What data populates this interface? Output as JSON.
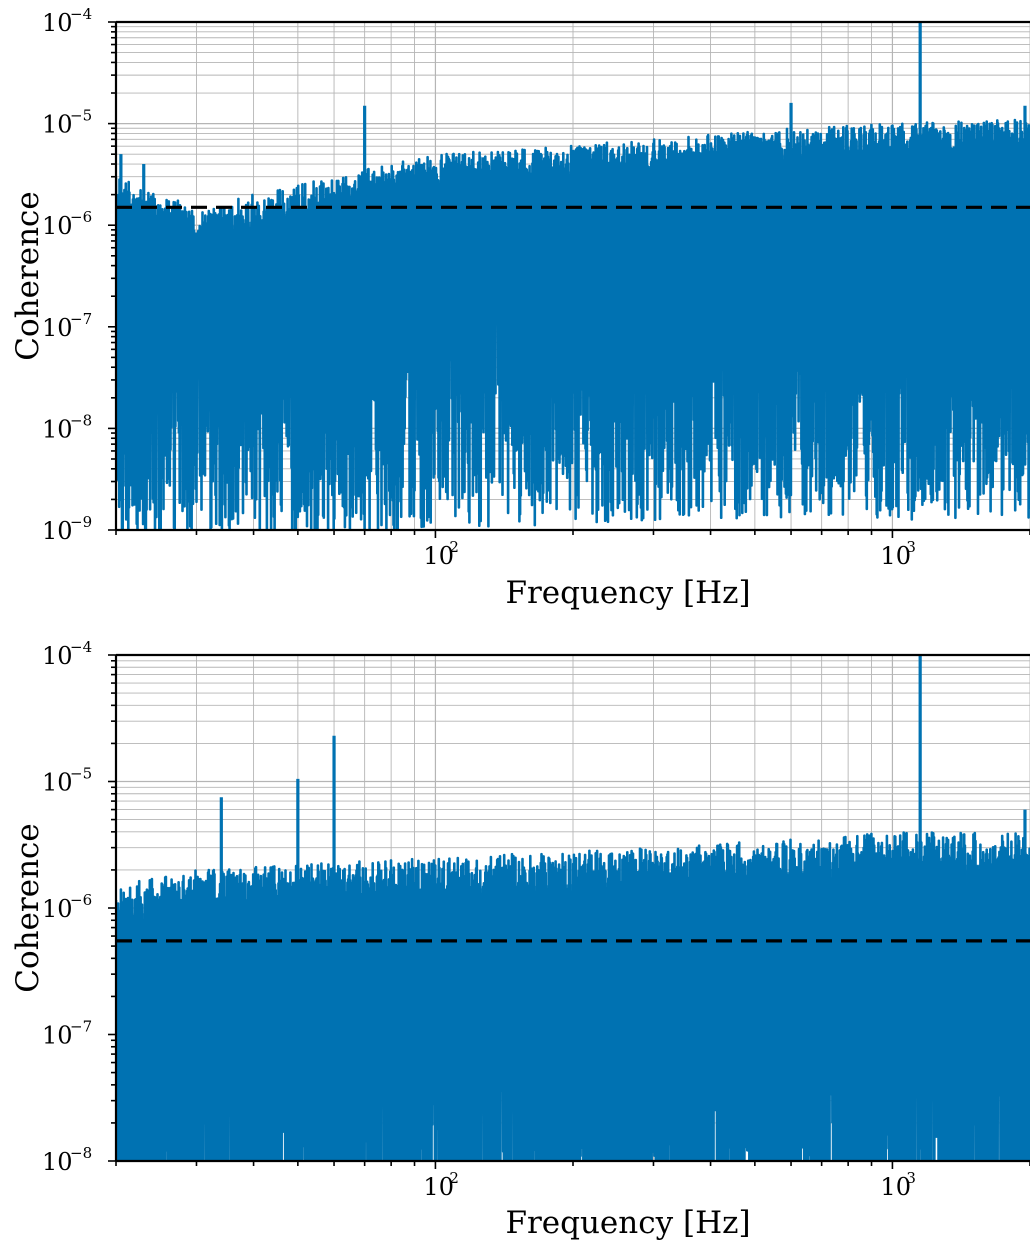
{
  "figure": {
    "panels_count": 2
  },
  "chart_data": [
    {
      "type": "line",
      "log_x": true,
      "log_y": true,
      "xlabel": "Frequency [Hz]",
      "ylabel": "Coherence",
      "xlim": [
        20,
        2000
      ],
      "ylim": [
        1e-09,
        0.0001
      ],
      "x_ticks": [
        {
          "base": "10",
          "exp": "2",
          "value": 100
        },
        {
          "base": "10",
          "exp": "3",
          "value": 1000
        }
      ],
      "y_ticks": [
        {
          "base": "10",
          "exp": "−9",
          "value": 1e-09
        },
        {
          "base": "10",
          "exp": "−8",
          "value": 1e-08
        },
        {
          "base": "10",
          "exp": "−7",
          "value": 1e-07
        },
        {
          "base": "10",
          "exp": "−6",
          "value": 1e-06
        },
        {
          "base": "10",
          "exp": "−5",
          "value": 1e-05
        },
        {
          "base": "10",
          "exp": "−4",
          "value": 0.0001
        }
      ],
      "grid": true,
      "colors": {
        "series": "#0072b2",
        "threshold": "#000000",
        "grid": "#b5b5b5"
      },
      "threshold": 1.5e-06,
      "series": [
        {
          "style": "noisy-coherence",
          "envelope": {
            "x": [
              20,
              30,
              50,
              100,
              300,
              600,
              1000,
              2000
            ],
            "y_upper": [
              3e-06,
              1.5e-06,
              2.5e-06,
              5e-06,
              7e-06,
              9e-06,
              1e-05,
              1.1e-05
            ],
            "y_median": [
              3e-07,
              2.5e-07,
              3e-07,
              4e-07,
              5e-07,
              5e-07,
              5e-07,
              5e-07
            ]
          },
          "spikes": [
            {
              "x": 20.5,
              "y": 5e-06
            },
            {
              "x": 23,
              "y": 4e-06
            },
            {
              "x": 46,
              "y": 1.6e-06
            },
            {
              "x": 70,
              "y": 1.5e-05
            },
            {
              "x": 600,
              "y": 1.6e-05
            },
            {
              "x": 1150,
              "y": 0.0001
            },
            {
              "x": 1950,
              "y": 1.5e-05
            }
          ]
        }
      ]
    },
    {
      "type": "line",
      "log_x": true,
      "log_y": true,
      "xlabel": "Frequency [Hz]",
      "ylabel": "Coherence",
      "xlim": [
        20,
        2000
      ],
      "ylim": [
        1e-08,
        0.0001
      ],
      "x_ticks": [
        {
          "base": "10",
          "exp": "2",
          "value": 100
        },
        {
          "base": "10",
          "exp": "3",
          "value": 1000
        }
      ],
      "y_ticks": [
        {
          "base": "10",
          "exp": "−8",
          "value": 1e-08
        },
        {
          "base": "10",
          "exp": "−7",
          "value": 1e-07
        },
        {
          "base": "10",
          "exp": "−6",
          "value": 1e-06
        },
        {
          "base": "10",
          "exp": "−5",
          "value": 1e-05
        },
        {
          "base": "10",
          "exp": "−4",
          "value": 0.0001
        }
      ],
      "grid": true,
      "colors": {
        "series": "#0072b2",
        "threshold": "#000000",
        "grid": "#b5b5b5"
      },
      "threshold": 5.5e-07,
      "series": [
        {
          "style": "noisy-coherence",
          "envelope": {
            "x": [
              20,
              30,
              50,
              100,
              300,
              600,
              1000,
              2000
            ],
            "y_upper": [
              1.5e-06,
              2e-06,
              2.2e-06,
              2.5e-06,
              3e-06,
              3.5e-06,
              4e-06,
              4e-06
            ],
            "y_median": [
              1.5e-07,
              2e-07,
              2e-07,
              2.5e-07,
              2.5e-07,
              2.5e-07,
              2.5e-07,
              2.5e-07
            ]
          },
          "spikes": [
            {
              "x": 34,
              "y": 7.5e-06
            },
            {
              "x": 50,
              "y": 1.05e-05
            },
            {
              "x": 60,
              "y": 2.3e-05
            },
            {
              "x": 1150,
              "y": 0.0001
            },
            {
              "x": 1950,
              "y": 6e-06
            }
          ]
        }
      ]
    }
  ]
}
